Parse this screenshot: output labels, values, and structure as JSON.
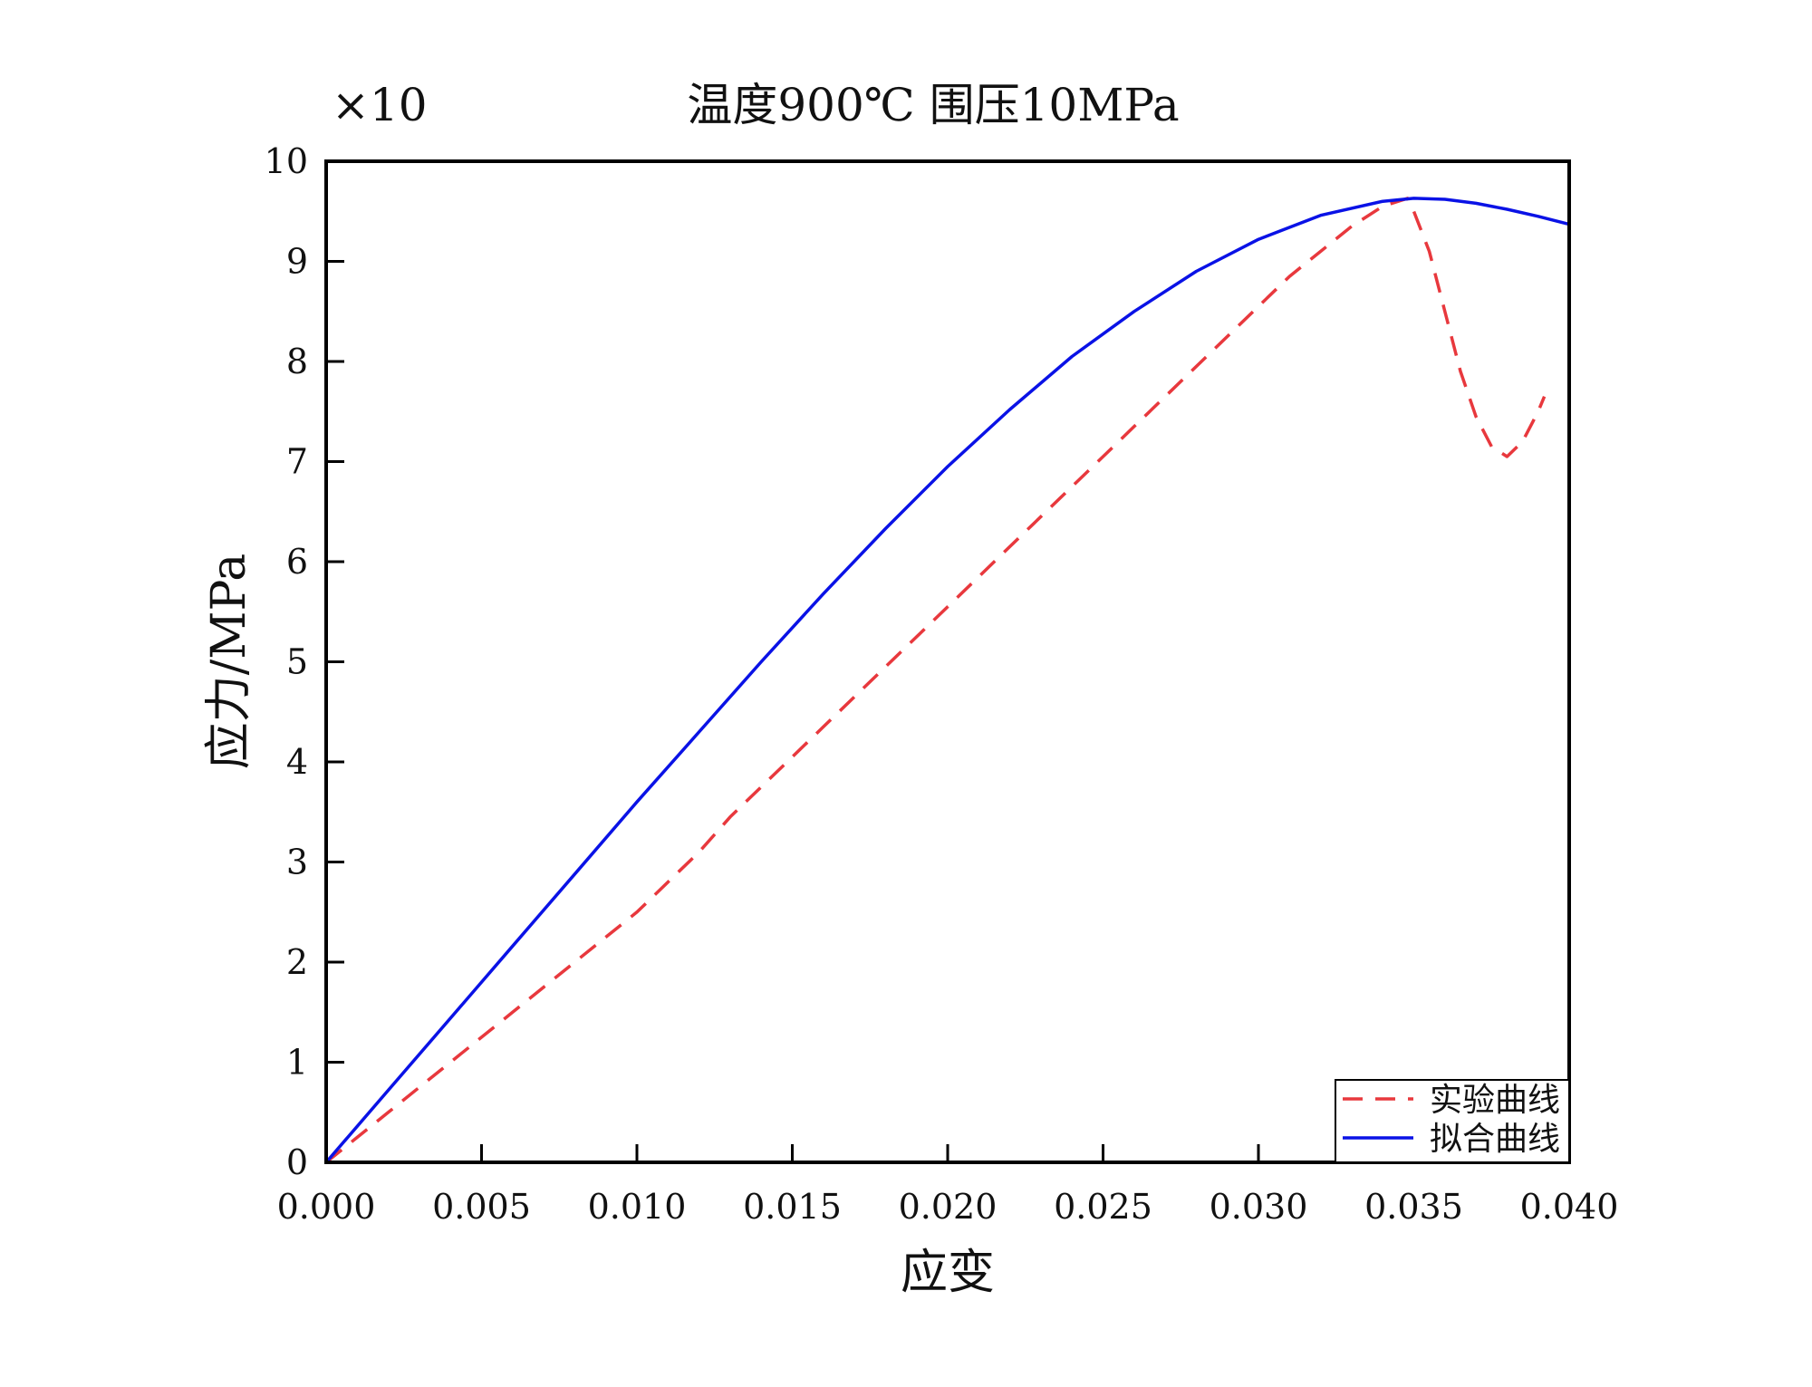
{
  "chart_data": {
    "type": "line",
    "title": "温度900℃ 围压10MPa",
    "multiplier_label": "×10",
    "xlabel": "应变",
    "ylabel": "应力/MPa",
    "xlim": [
      0,
      0.04
    ],
    "ylim": [
      0,
      10
    ],
    "x_ticks": [
      0,
      0.005,
      0.01,
      0.015,
      0.02,
      0.025,
      0.03,
      0.035,
      0.04
    ],
    "x_tick_labels": [
      "0.000",
      "0.005",
      "0.010",
      "0.015",
      "0.020",
      "0.025",
      "0.030",
      "0.035",
      "0.040"
    ],
    "y_ticks": [
      0,
      1,
      2,
      3,
      4,
      5,
      6,
      7,
      8,
      9,
      10
    ],
    "y_tick_labels": [
      "0",
      "1",
      "2",
      "3",
      "4",
      "5",
      "6",
      "7",
      "8",
      "9",
      "10"
    ],
    "grid": false,
    "legend_position": "bottom-right",
    "series": [
      {
        "name": "实验曲线",
        "color": "#e8383d",
        "style": "dashed",
        "x": [
          0,
          0.001,
          0.002,
          0.003,
          0.004,
          0.005,
          0.006,
          0.007,
          0.008,
          0.009,
          0.01,
          0.011,
          0.012,
          0.013,
          0.014,
          0.015,
          0.016,
          0.017,
          0.018,
          0.019,
          0.02,
          0.021,
          0.022,
          0.023,
          0.024,
          0.025,
          0.026,
          0.027,
          0.028,
          0.029,
          0.03,
          0.031,
          0.032,
          0.033,
          0.034,
          0.0348,
          0.035,
          0.0355,
          0.036,
          0.0365,
          0.037,
          0.0375,
          0.038,
          0.0385,
          0.039,
          0.0392
        ],
        "y": [
          0,
          0.25,
          0.5,
          0.75,
          1.0,
          1.25,
          1.5,
          1.75,
          2.0,
          2.25,
          2.5,
          2.8,
          3.1,
          3.45,
          3.75,
          4.05,
          4.35,
          4.65,
          4.95,
          5.25,
          5.55,
          5.85,
          6.15,
          6.45,
          6.75,
          7.05,
          7.35,
          7.65,
          7.95,
          8.25,
          8.55,
          8.85,
          9.1,
          9.35,
          9.55,
          9.63,
          9.5,
          9.1,
          8.5,
          7.9,
          7.45,
          7.15,
          7.05,
          7.2,
          7.5,
          7.65
        ]
      },
      {
        "name": "拟合曲线",
        "color": "#0a12e6",
        "style": "solid",
        "x": [
          0,
          0.002,
          0.004,
          0.006,
          0.008,
          0.01,
          0.012,
          0.014,
          0.016,
          0.018,
          0.02,
          0.022,
          0.024,
          0.026,
          0.028,
          0.03,
          0.032,
          0.034,
          0.035,
          0.036,
          0.037,
          0.038,
          0.039,
          0.04
        ],
        "y": [
          0,
          0.72,
          1.44,
          2.16,
          2.88,
          3.6,
          4.3,
          5.0,
          5.68,
          6.33,
          6.95,
          7.52,
          8.05,
          8.5,
          8.9,
          9.22,
          9.46,
          9.6,
          9.63,
          9.62,
          9.58,
          9.52,
          9.45,
          9.37
        ]
      }
    ]
  }
}
